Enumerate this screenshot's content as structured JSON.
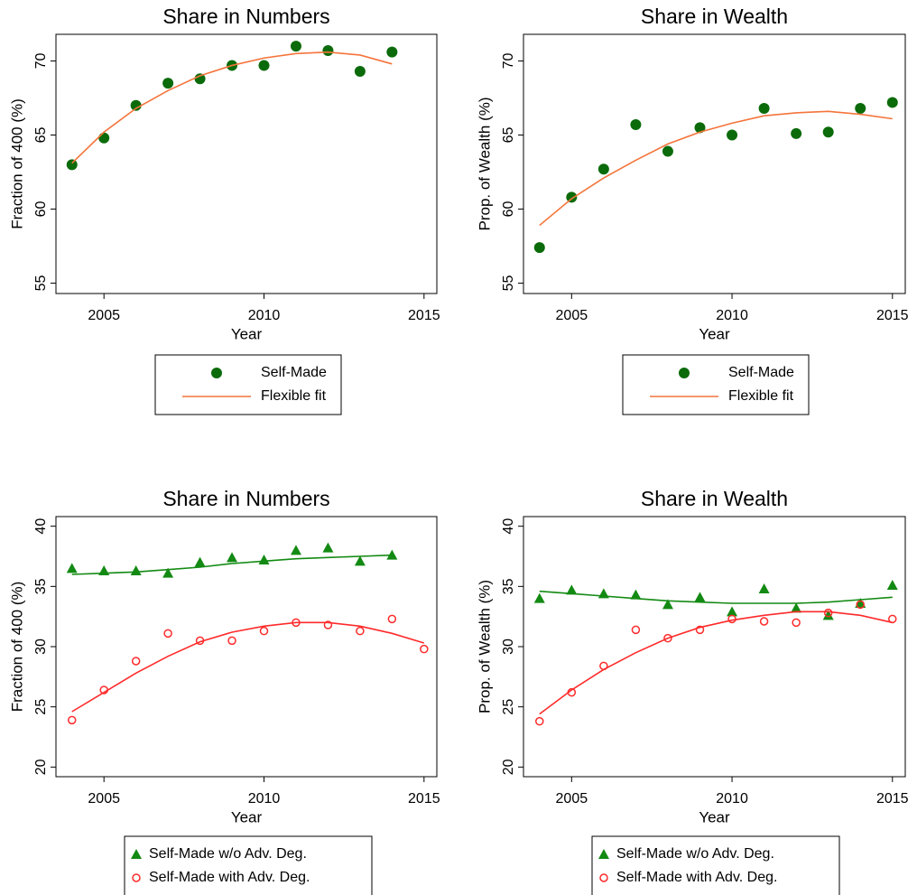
{
  "chart_data": [
    {
      "type": "scatter",
      "title": "Share in Numbers",
      "xlabel": "Year",
      "ylabel": "Fraction of 400 (%)",
      "x": [
        2004,
        2005,
        2006,
        2007,
        2008,
        2009,
        2010,
        2011,
        2012,
        2013,
        2014
      ],
      "xlim": [
        2003.5,
        2015.4
      ],
      "xticks": [
        2005,
        2010,
        2015
      ],
      "ylim": [
        54.3,
        71.8
      ],
      "yticks": [
        55,
        60,
        65,
        70
      ],
      "series": [
        {
          "name": "Self-Made",
          "mark": "circle",
          "color": "#0b6b0b",
          "values": [
            63.0,
            64.8,
            67.0,
            68.5,
            68.8,
            69.7,
            69.7,
            71.0,
            70.7,
            69.3,
            70.6
          ]
        },
        {
          "name": "Flexible fit",
          "mark": "line",
          "color": "#f4743b",
          "values": [
            63.1,
            65.2,
            66.8,
            68.0,
            69.0,
            69.7,
            70.2,
            70.5,
            70.6,
            70.4,
            69.8
          ]
        }
      ]
    },
    {
      "type": "scatter",
      "title": "Share in Wealth",
      "xlabel": "Year",
      "ylabel": "Prop. of Wealth (%)",
      "x": [
        2004,
        2005,
        2006,
        2007,
        2008,
        2009,
        2010,
        2011,
        2012,
        2013,
        2014,
        2015
      ],
      "xlim": [
        2003.5,
        2015.4
      ],
      "xticks": [
        2005,
        2010,
        2015
      ],
      "ylim": [
        54.3,
        71.8
      ],
      "yticks": [
        55,
        60,
        65,
        70
      ],
      "series": [
        {
          "name": "Self-Made",
          "mark": "circle",
          "color": "#0b6b0b",
          "values": [
            57.4,
            60.8,
            62.7,
            65.7,
            63.9,
            65.5,
            65.0,
            66.8,
            65.1,
            65.2,
            66.8,
            67.2
          ]
        },
        {
          "name": "Flexible fit",
          "mark": "line",
          "color": "#f4743b",
          "values": [
            58.9,
            60.7,
            62.1,
            63.3,
            64.4,
            65.2,
            65.8,
            66.3,
            66.5,
            66.6,
            66.4,
            66.1
          ]
        }
      ]
    },
    {
      "type": "scatter",
      "title": "Share in Numbers",
      "xlabel": "Year",
      "ylabel": "Fraction of 400 (%)",
      "x": [
        2004,
        2005,
        2006,
        2007,
        2008,
        2009,
        2010,
        2011,
        2012,
        2013,
        2014,
        2015
      ],
      "xlim": [
        2003.5,
        2015.4
      ],
      "xticks": [
        2005,
        2010,
        2015
      ],
      "ylim": [
        19.2,
        40.8
      ],
      "yticks": [
        20,
        25,
        30,
        35,
        40
      ],
      "series": [
        {
          "name": "Self-Made w/o Adv. Deg.",
          "mark": "triangle",
          "color": "#138a13",
          "values": [
            36.5,
            36.3,
            36.3,
            36.1,
            37.0,
            37.4,
            37.2,
            38.0,
            38.2,
            37.1,
            37.6,
            null
          ]
        },
        {
          "name": "Self-Made with Adv. Deg.",
          "mark": "hollow-circle",
          "color": "#ff2a2a",
          "values": [
            23.9,
            26.4,
            28.8,
            31.1,
            30.5,
            30.5,
            31.3,
            32.0,
            31.8,
            31.3,
            32.3,
            29.8
          ]
        },
        {
          "mark": "line",
          "color": "#138a13",
          "values": [
            36.0,
            36.1,
            36.2,
            36.4,
            36.6,
            36.9,
            37.1,
            37.3,
            37.4,
            37.5,
            37.6,
            null
          ]
        },
        {
          "mark": "line",
          "color": "#ff2a2a",
          "values": [
            24.6,
            26.2,
            27.8,
            29.2,
            30.4,
            31.2,
            31.7,
            32.0,
            32.0,
            31.7,
            31.1,
            30.3
          ]
        }
      ]
    },
    {
      "type": "scatter",
      "title": "Share in Wealth",
      "xlabel": "Year",
      "ylabel": "Prop. of Wealth (%)",
      "x": [
        2004,
        2005,
        2006,
        2007,
        2008,
        2009,
        2010,
        2011,
        2012,
        2013,
        2014,
        2015
      ],
      "xlim": [
        2003.5,
        2015.4
      ],
      "xticks": [
        2005,
        2010,
        2015
      ],
      "ylim": [
        19.2,
        40.8
      ],
      "yticks": [
        20,
        25,
        30,
        35,
        40
      ],
      "series": [
        {
          "name": "Self-Made w/o Adv. Deg.",
          "mark": "triangle",
          "color": "#138a13",
          "values": [
            34.0,
            34.7,
            34.4,
            34.3,
            33.5,
            34.1,
            32.9,
            34.8,
            33.2,
            32.6,
            33.6,
            35.1
          ]
        },
        {
          "name": "Self-Made with Adv. Deg.",
          "mark": "hollow-circle",
          "color": "#ff2a2a",
          "values": [
            23.8,
            26.2,
            28.4,
            31.4,
            30.7,
            31.4,
            32.3,
            32.1,
            32.0,
            32.8,
            33.5,
            32.3
          ]
        },
        {
          "mark": "line",
          "color": "#138a13",
          "values": [
            34.6,
            34.4,
            34.2,
            34.0,
            33.8,
            33.7,
            33.6,
            33.6,
            33.6,
            33.7,
            33.9,
            34.1
          ]
        },
        {
          "mark": "line",
          "color": "#ff2a2a",
          "values": [
            24.4,
            26.4,
            28.1,
            29.5,
            30.7,
            31.6,
            32.2,
            32.6,
            32.9,
            32.9,
            32.6,
            32.0
          ]
        }
      ]
    }
  ]
}
